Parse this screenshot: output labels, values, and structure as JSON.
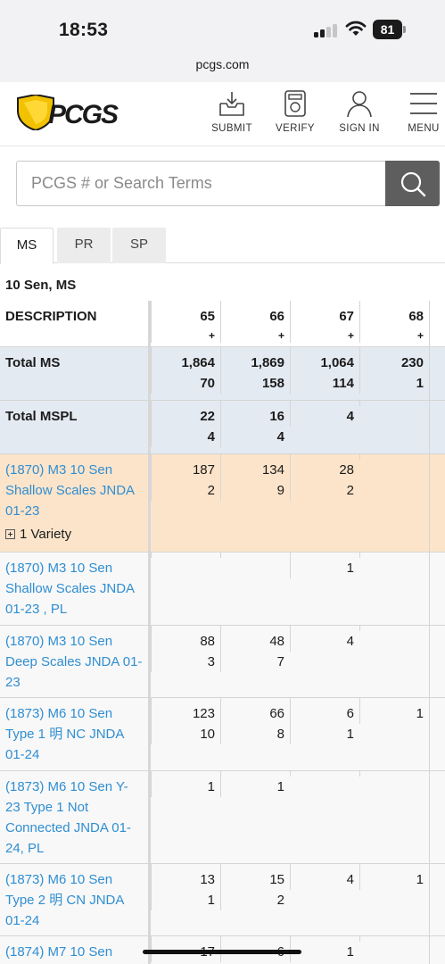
{
  "status_bar": {
    "time": "18:53",
    "battery": "81",
    "url": "pcgs.com"
  },
  "header": {
    "logo_text": "PCGS",
    "nav": [
      {
        "label": "SUBMIT",
        "icon": "submit-tray-icon"
      },
      {
        "label": "VERIFY",
        "icon": "verify-slab-icon"
      },
      {
        "label": "SIGN IN",
        "icon": "user-icon"
      },
      {
        "label": "MENU",
        "icon": "hamburger-menu-icon"
      }
    ]
  },
  "search": {
    "placeholder": "PCGS # or Search Terms",
    "value": ""
  },
  "tabs": [
    {
      "label": "MS",
      "active": true
    },
    {
      "label": "PR"
    },
    {
      "label": "SP"
    }
  ],
  "section_title": "10 Sen, MS",
  "table": {
    "header": {
      "description": "DESCRIPTION",
      "grades": [
        "65",
        "66",
        "67",
        "68"
      ],
      "plus": "+"
    },
    "rows": [
      {
        "desc": "Total MS",
        "c": [
          [
            "1,864",
            "70"
          ],
          [
            "1,869",
            "158"
          ],
          [
            "1,064",
            "114"
          ],
          [
            "230",
            "1"
          ]
        ]
      },
      {
        "desc": "Total MSPL",
        "c": [
          [
            "22",
            "4"
          ],
          [
            "16",
            "4"
          ],
          [
            "4",
            ""
          ],
          [
            "",
            ""
          ]
        ]
      },
      {
        "desc": "(1870) M3 10 Sen Shallow Scales JNDA 01-23",
        "variety": "1 Variety",
        "c": [
          [
            "187",
            "2"
          ],
          [
            "134",
            "9"
          ],
          [
            "28",
            "2"
          ],
          [
            "",
            ""
          ]
        ]
      },
      {
        "desc": "(1870) M3 10 Sen Shallow Scales JNDA 01-23 , PL",
        "c": [
          [
            "",
            ""
          ],
          [
            "",
            ""
          ],
          [
            "1",
            ""
          ],
          [
            "",
            ""
          ]
        ]
      },
      {
        "desc": "(1870) M3 10 Sen Deep Scales JNDA 01-23",
        "c": [
          [
            "88",
            "3"
          ],
          [
            "48",
            "7"
          ],
          [
            "4",
            ""
          ],
          [
            "",
            ""
          ]
        ]
      },
      {
        "desc": "(1873) M6 10 Sen Type 1 明 NC JNDA 01-24",
        "c": [
          [
            "123",
            "10"
          ],
          [
            "66",
            "8"
          ],
          [
            "6",
            "1"
          ],
          [
            "1",
            ""
          ]
        ]
      },
      {
        "desc": "(1873) M6 10 Sen Y-23 Type 1 Not Connected JNDA 01-24, PL",
        "c": [
          [
            "1",
            ""
          ],
          [
            "1",
            ""
          ],
          [
            "",
            ""
          ],
          [
            "",
            ""
          ]
        ]
      },
      {
        "desc": "(1873) M6 10 Sen Type 2 明 CN JNDA 01-24",
        "c": [
          [
            "13",
            "1"
          ],
          [
            "15",
            "2"
          ],
          [
            "4",
            ""
          ],
          [
            "1",
            ""
          ]
        ]
      },
      {
        "desc": "(1874) M7 10 Sen",
        "c": [
          [
            "17",
            ""
          ],
          [
            "6",
            ""
          ],
          [
            "1",
            ""
          ],
          [
            "",
            ""
          ]
        ]
      }
    ]
  }
}
